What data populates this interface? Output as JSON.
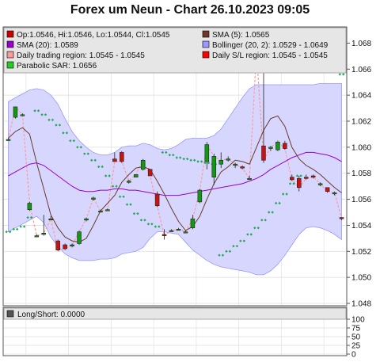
{
  "header": {
    "title": "Forex um Neun - Chart 26.10.2023 09:05"
  },
  "legend": [
    {
      "text": "Op:1.0546, Hi:1.0546, Lo:1.0544, Cl:1.0545",
      "color": "#cc0000"
    },
    {
      "text": "SMA (5): 1.0565",
      "color": "#6b3a2a"
    },
    {
      "text": "SMA (20): 1.0589",
      "color": "#9900cc"
    },
    {
      "text": "Bollinger (20, 2): 1.0529 - 1.0649",
      "color": "#9999ff"
    },
    {
      "text": "Daily trading region: 1.0545 - 1.0545",
      "color": "#ff9999"
    },
    {
      "text": "Daily S/L region: 1.0545 - 1.0545",
      "color": "#ff0000"
    },
    {
      "text": "Parabolic SAR: 1.0656",
      "color": "#22cc22"
    }
  ],
  "lower_panel": {
    "legend": {
      "text": "Long/Short: 0.0000",
      "color": "#555555"
    },
    "ticks": [
      "100",
      "75",
      "50",
      "25",
      "0"
    ]
  },
  "chart_data": {
    "type": "candlestick",
    "title": "Forex um Neun - Chart 26.10.2023 09:05",
    "ylim": [
      1.048,
      1.069
    ],
    "y_ticks": [
      "1.048",
      "1.050",
      "1.052",
      "1.054",
      "1.056",
      "1.058",
      "1.060",
      "1.062",
      "1.064",
      "1.066",
      "1.068"
    ],
    "grid": true,
    "candles": [
      {
        "o": 1.0606,
        "h": 1.0607,
        "l": 1.0605,
        "c": 1.0606
      },
      {
        "o": 1.0623,
        "h": 1.0631,
        "l": 1.0622,
        "c": 1.0631
      },
      {
        "o": 1.0625,
        "h": 1.0626,
        "l": 1.0624,
        "c": 1.0625
      },
      {
        "o": 1.0552,
        "h": 1.0558,
        "l": 1.0551,
        "c": 1.0557
      },
      {
        "o": 1.0532,
        "h": 1.0533,
        "l": 1.0531,
        "c": 1.0532
      },
      {
        "o": 1.0533,
        "h": 1.0548,
        "l": 1.0532,
        "c": 1.0534
      },
      {
        "o": 1.0545,
        "h": 1.0547,
        "l": 1.0544,
        "c": 1.0545
      },
      {
        "o": 1.0528,
        "h": 1.0529,
        "l": 1.052,
        "c": 1.0521
      },
      {
        "o": 1.0525,
        "h": 1.0526,
        "l": 1.0521,
        "c": 1.0522
      },
      {
        "o": 1.0524,
        "h": 1.0526,
        "l": 1.0523,
        "c": 1.0525
      },
      {
        "o": 1.0526,
        "h": 1.0536,
        "l": 1.0525,
        "c": 1.0535
      },
      {
        "o": 1.0544,
        "h": 1.0546,
        "l": 1.0543,
        "c": 1.0545
      },
      {
        "o": 1.056,
        "h": 1.0562,
        "l": 1.0559,
        "c": 1.0561
      },
      {
        "o": 1.0551,
        "h": 1.0552,
        "l": 1.055,
        "c": 1.0551
      },
      {
        "o": 1.0552,
        "h": 1.0553,
        "l": 1.0551,
        "c": 1.0552
      },
      {
        "o": 1.0591,
        "h": 1.0596,
        "l": 1.0589,
        "c": 1.0589
      },
      {
        "o": 1.0596,
        "h": 1.0597,
        "l": 1.0588,
        "c": 1.0589
      },
      {
        "o": 1.0573,
        "h": 1.0575,
        "l": 1.0572,
        "c": 1.0574
      },
      {
        "o": 1.0577,
        "h": 1.0579,
        "l": 1.0577,
        "c": 1.0579
      },
      {
        "o": 1.0583,
        "h": 1.0591,
        "l": 1.0582,
        "c": 1.059
      },
      {
        "o": 1.0583,
        "h": 1.0583,
        "l": 1.0578,
        "c": 1.0578
      },
      {
        "o": 1.0564,
        "h": 1.0566,
        "l": 1.0554,
        "c": 1.0555
      },
      {
        "o": 1.0533,
        "h": 1.0537,
        "l": 1.0529,
        "c": 1.0532
      },
      {
        "o": 1.0536,
        "h": 1.0537,
        "l": 1.0535,
        "c": 1.0536
      },
      {
        "o": 1.0537,
        "h": 1.0538,
        "l": 1.0536,
        "c": 1.0537
      },
      {
        "o": 1.0535,
        "h": 1.0536,
        "l": 1.0534,
        "c": 1.0535
      },
      {
        "o": 1.0538,
        "h": 1.0548,
        "l": 1.0537,
        "c": 1.0545
      },
      {
        "o": 1.0558,
        "h": 1.0568,
        "l": 1.0557,
        "c": 1.0567
      },
      {
        "o": 1.0589,
        "h": 1.0604,
        "l": 1.0583,
        "c": 1.0602
      },
      {
        "o": 1.0577,
        "h": 1.0595,
        "l": 1.0571,
        "c": 1.0593
      },
      {
        "o": 1.0587,
        "h": 1.0596,
        "l": 1.0584,
        "c": 1.059
      },
      {
        "o": 1.0591,
        "h": 1.0593,
        "l": 1.0589,
        "c": 1.0591
      },
      {
        "o": 1.0586,
        "h": 1.0588,
        "l": 1.0584,
        "c": 1.0587
      },
      {
        "o": 1.0585,
        "h": 1.0586,
        "l": 1.0583,
        "c": 1.0584
      },
      {
        "o": 1.0576,
        "h": 1.0578,
        "l": 1.0575,
        "c": 1.0576
      },
      {
        "o": 1.0665,
        "h": 1.0692,
        "l": 1.0663,
        "c": 1.0673
      },
      {
        "o": 1.0601,
        "h": 1.0673,
        "l": 1.0588,
        "c": 1.059
      },
      {
        "o": 1.0599,
        "h": 1.0601,
        "l": 1.0597,
        "c": 1.06
      },
      {
        "o": 1.0598,
        "h": 1.0605,
        "l": 1.0597,
        "c": 1.0604
      },
      {
        "o": 1.0603,
        "h": 1.0605,
        "l": 1.0598,
        "c": 1.0599
      },
      {
        "o": 1.0577,
        "h": 1.0579,
        "l": 1.0574,
        "c": 1.0575
      },
      {
        "o": 1.0576,
        "h": 1.0578,
        "l": 1.0566,
        "c": 1.0569
      },
      {
        "o": 1.0577,
        "h": 1.0579,
        "l": 1.0575,
        "c": 1.0576
      },
      {
        "o": 1.0578,
        "h": 1.0579,
        "l": 1.0576,
        "c": 1.0577
      },
      {
        "o": 1.0571,
        "h": 1.0573,
        "l": 1.057,
        "c": 1.0572
      },
      {
        "o": 1.0569,
        "h": 1.0569,
        "l": 1.0565,
        "c": 1.0566
      },
      {
        "o": 1.0565,
        "h": 1.0566,
        "l": 1.0563,
        "c": 1.0565
      },
      {
        "o": 1.0546,
        "h": 1.0546,
        "l": 1.0544,
        "c": 1.0545
      }
    ],
    "sma5": [
      1.0607,
      1.0612,
      1.0615,
      1.061,
      1.0588,
      1.0568,
      1.0548,
      1.0538,
      1.0531,
      1.0528,
      1.0527,
      1.053,
      1.054,
      1.0551,
      1.0557,
      1.0563,
      1.0573,
      1.0579,
      1.0584,
      1.0585,
      1.0583,
      1.0574,
      1.0564,
      1.0553,
      1.0543,
      1.0536,
      1.0539,
      1.0547,
      1.056,
      1.0572,
      1.0581,
      1.0585,
      1.059,
      1.0589,
      1.0587,
      1.06,
      1.0613,
      1.0622,
      1.0624,
      1.0616,
      1.06,
      1.0591,
      1.0586,
      1.0583,
      1.0579,
      1.0574,
      1.0569,
      1.0565
    ],
    "sma20": [
      1.0578,
      1.0581,
      1.0584,
      1.0587,
      1.0588,
      1.0586,
      1.0582,
      1.0578,
      1.0574,
      1.057,
      1.0567,
      1.0566,
      1.0566,
      1.0567,
      1.0567,
      1.0568,
      1.0568,
      1.0567,
      1.0567,
      1.0566,
      1.0565,
      1.0564,
      1.0563,
      1.0563,
      1.0563,
      1.0564,
      1.0565,
      1.0566,
      1.0567,
      1.0568,
      1.0569,
      1.057,
      1.0571,
      1.0572,
      1.0574,
      1.0576,
      1.0579,
      1.0583,
      1.0586,
      1.0589,
      1.0592,
      1.0594,
      1.0596,
      1.0596,
      1.0595,
      1.0594,
      1.0592,
      1.0589
    ],
    "boll_upper": [
      1.0635,
      1.0638,
      1.0641,
      1.0644,
      1.0645,
      1.0644,
      1.064,
      1.0633,
      1.0622,
      1.0612,
      1.0605,
      1.06,
      1.0596,
      1.0594,
      1.0594,
      1.0596,
      1.06,
      1.0601,
      1.0601,
      1.0603,
      1.0602,
      1.0599,
      1.0598,
      1.0599,
      1.0602,
      1.0606,
      1.0607,
      1.0607,
      1.0607,
      1.0609,
      1.0614,
      1.0622,
      1.063,
      1.0638,
      1.0645,
      1.0648,
      1.0648,
      1.0648,
      1.0648,
      1.0648,
      1.0648,
      1.0648,
      1.0648,
      1.0648,
      1.0649,
      1.0649,
      1.0649,
      1.0649
    ],
    "boll_lower": [
      1.0535,
      1.0538,
      1.0541,
      1.0544,
      1.0547,
      1.0542,
      1.0531,
      1.0524,
      1.0518,
      1.0515,
      1.0513,
      1.0513,
      1.0513,
      1.0514,
      1.0514,
      1.0515,
      1.0518,
      1.0519,
      1.052,
      1.0523,
      1.053,
      1.0535,
      1.0535,
      1.0534,
      1.0533,
      1.0527,
      1.0521,
      1.0517,
      1.0513,
      1.051,
      1.0508,
      1.0507,
      1.0506,
      1.0505,
      1.0504,
      1.0502,
      1.0502,
      1.0505,
      1.051,
      1.0517,
      1.0525,
      1.0533,
      1.0538,
      1.0539,
      1.0538,
      1.0536,
      1.0533,
      1.0529
    ],
    "sar": [
      1.0535,
      1.0537,
      1.0539,
      1.0546,
      1.0628,
      1.0625,
      1.0621,
      1.0617,
      1.0611,
      1.0605,
      1.06,
      1.0595,
      1.059,
      1.0585,
      1.0578,
      1.057,
      1.0562,
      1.0556,
      1.0549,
      1.0544,
      1.0541,
      1.0539,
      1.0596,
      1.0594,
      1.0592,
      1.0591,
      1.059,
      1.0589,
      1.0588,
      1.0587,
      1.0517,
      1.052,
      1.0524,
      1.0528,
      1.0533,
      1.0538,
      1.0544,
      1.055,
      1.0557,
      1.0564,
      1.0572,
      1.0578,
      1.0676,
      1.0672,
      1.0668,
      1.0664,
      1.066,
      1.0656
    ],
    "sar_band_start_index": 4
  },
  "colors": {
    "up": "#119911",
    "down": "#cc1111",
    "sma5": "#6b3a2a",
    "sma20": "#9900cc",
    "bollinger_fill": "#d6d6ff",
    "bollinger_edge": "#9999ff",
    "sar": "#22aa55",
    "trading_region": "#ff9999"
  }
}
